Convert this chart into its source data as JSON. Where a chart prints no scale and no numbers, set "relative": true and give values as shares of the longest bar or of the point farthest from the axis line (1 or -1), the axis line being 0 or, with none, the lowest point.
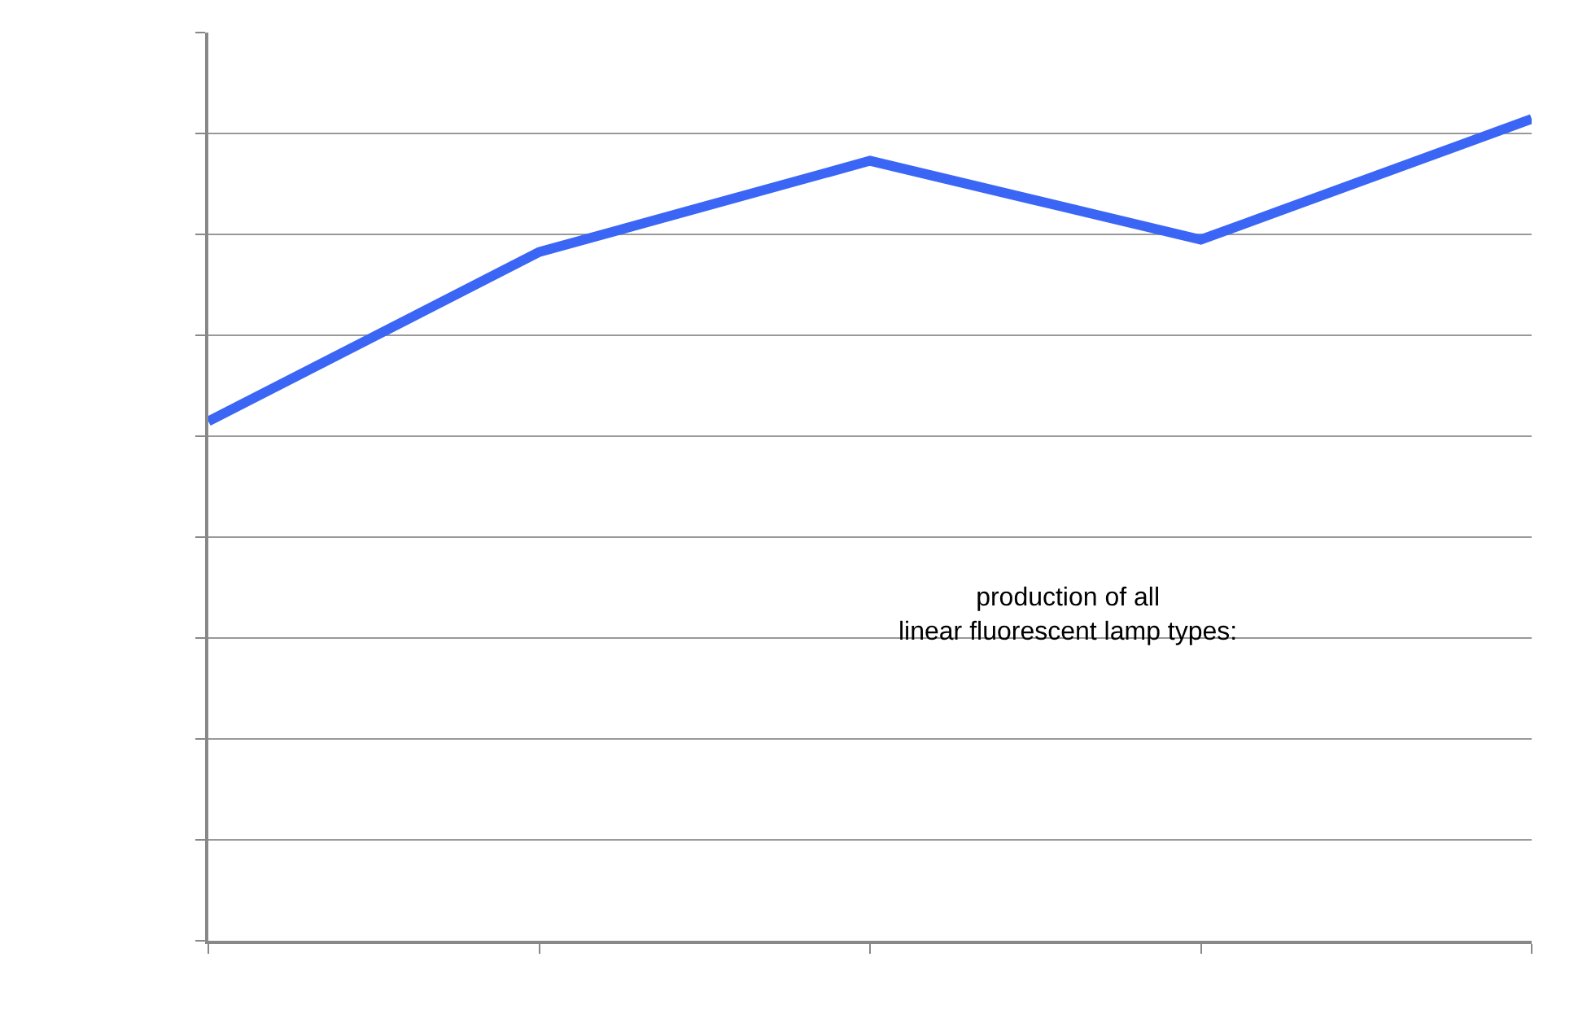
{
  "chart_data": {
    "type": "line",
    "relative": true,
    "categories": [
      null,
      null,
      null,
      null,
      null
    ],
    "series": [
      {
        "color": "#3b66f5",
        "values": [
          0.632,
          0.838,
          0.949,
          0.853,
          1
        ]
      }
    ],
    "annotations": [
      "production of all\nlinear fluorescent lamp types:"
    ],
    "grid": "y",
    "marker": "none",
    "line_style": "solid"
  }
}
